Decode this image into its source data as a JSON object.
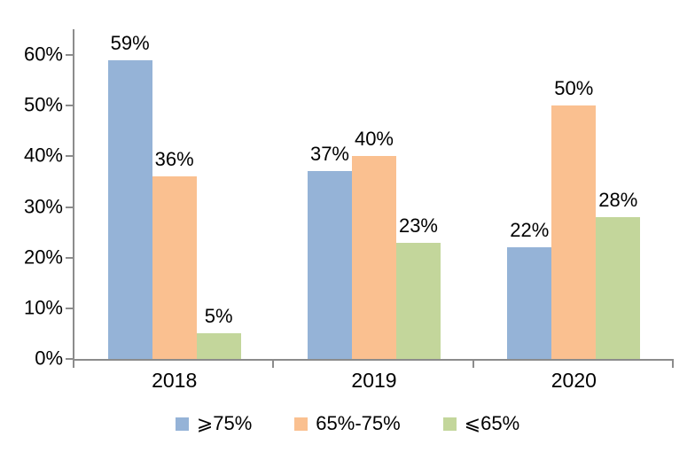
{
  "chart_data": {
    "type": "bar",
    "categories": [
      "2018",
      "2019",
      "2020"
    ],
    "series": [
      {
        "name": "⩾75%",
        "color": "#95B3D7",
        "values": [
          59,
          37,
          22
        ]
      },
      {
        "name": "65%-75%",
        "color": "#FAC090",
        "values": [
          36,
          40,
          50
        ]
      },
      {
        "name": "⩽65%",
        "color": "#C3D69B",
        "values": [
          5,
          23,
          28
        ]
      }
    ],
    "value_suffix": "%",
    "value_labels_shown": true,
    "y_ticks": [
      "0%",
      "10%",
      "20%",
      "30%",
      "40%",
      "50%",
      "60%"
    ],
    "ylim": [
      0,
      65
    ],
    "grid": false,
    "legend_position": "bottom",
    "axis_color": "#8c8c8c"
  }
}
